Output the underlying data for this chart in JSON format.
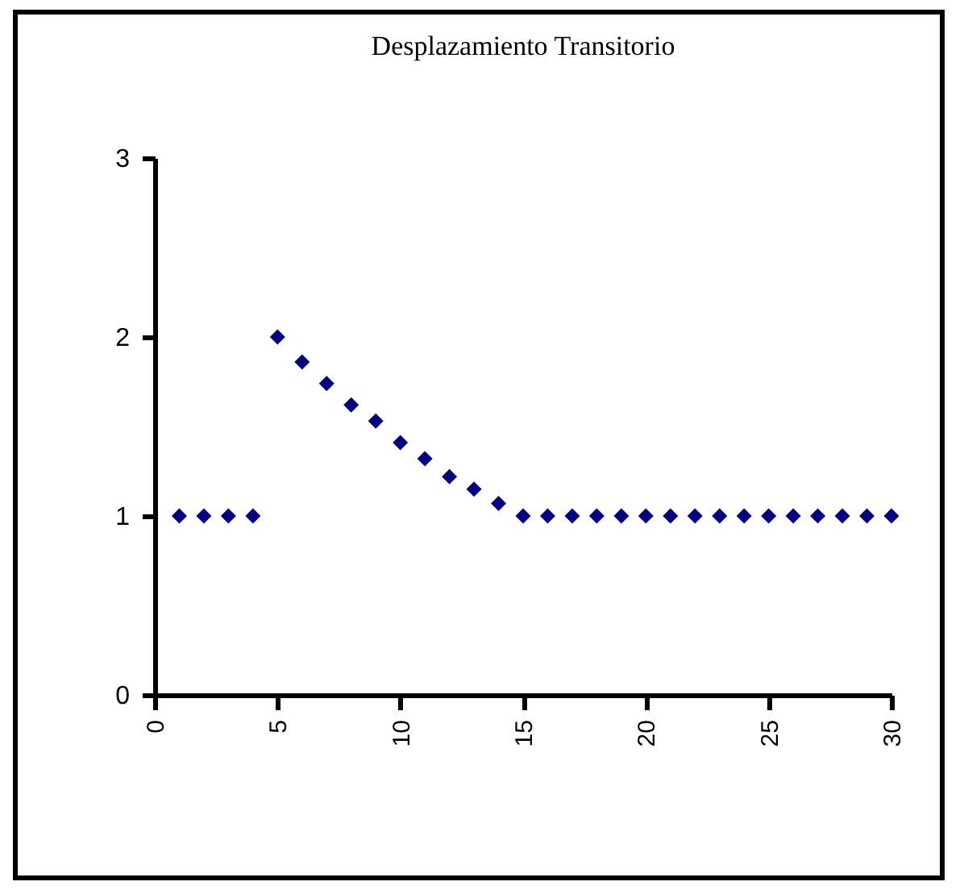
{
  "chart_data": {
    "type": "scatter",
    "title": "Desplazamiento Transitorio",
    "x": [
      1,
      2,
      3,
      4,
      5,
      6,
      7,
      8,
      9,
      10,
      11,
      12,
      13,
      14,
      15,
      16,
      17,
      18,
      19,
      20,
      21,
      22,
      23,
      24,
      25,
      26,
      27,
      28,
      29,
      30
    ],
    "series": [
      {
        "color": "#000080",
        "values": [
          1,
          1,
          1,
          1,
          2.0,
          1.86,
          1.74,
          1.62,
          1.53,
          1.41,
          1.32,
          1.22,
          1.15,
          1.07,
          1,
          1,
          1,
          1,
          1,
          1,
          1,
          1,
          1,
          1,
          1,
          1,
          1,
          1,
          1,
          1
        ]
      }
    ],
    "xlim": [
      0,
      30
    ],
    "xticks": [
      0,
      5,
      10,
      15,
      20,
      25,
      30
    ],
    "ylim": [
      0,
      3
    ],
    "yticks": [
      0,
      1,
      2,
      3
    ],
    "grid": false,
    "marker": "diamond"
  }
}
